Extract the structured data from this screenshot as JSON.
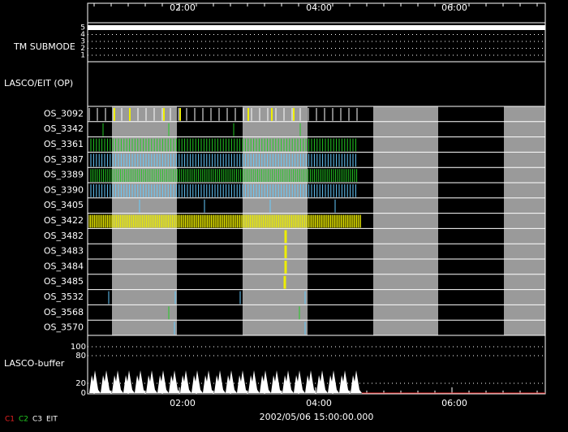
{
  "time_axis": {
    "top_labels": [
      "02:00",
      "04:00",
      "06:00"
    ],
    "bottom_labels": [
      "02:00",
      "04:00",
      "06:00"
    ],
    "date": "2002/05/06 15:00:00.000"
  },
  "panels": {
    "submode": {
      "label": "TM SUBMODE",
      "ticks": [
        "5",
        "4",
        "3",
        "2",
        "1"
      ]
    },
    "op": {
      "label": "LASCO/EIT (OP)"
    },
    "rows": [
      "OS_3092",
      "OS_3342",
      "OS_3361",
      "OS_3387",
      "OS_3389",
      "OS_3390",
      "OS_3405",
      "OS_3422",
      "OS_3482",
      "OS_3483",
      "OS_3484",
      "OS_3485",
      "OS_3532",
      "OS_3568",
      "OS_3570"
    ],
    "buffer": {
      "label": "LASCO-buffer",
      "ticks": [
        "100",
        "80",
        "20",
        "0"
      ]
    }
  },
  "legend": [
    "C1",
    "C2",
    "C3",
    "EIT"
  ]
}
